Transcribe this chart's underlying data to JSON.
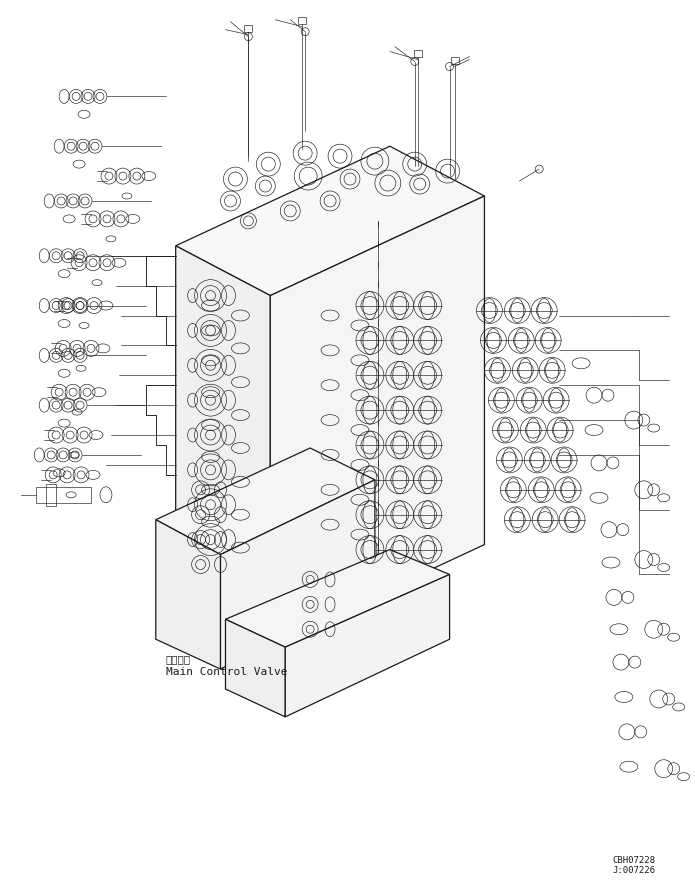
{
  "background_color": "#ffffff",
  "line_color": "#1a1a1a",
  "text_color": "#1a1a1a",
  "label_chinese": "主控制阀",
  "label_english": "Main Control Valve",
  "ref_code1": "CBH07228",
  "ref_code2": "J:007226",
  "fig_width": 6.95,
  "fig_height": 8.85,
  "dpi": 100,
  "lw_main": 0.9,
  "lw_med": 0.65,
  "lw_thin": 0.45
}
